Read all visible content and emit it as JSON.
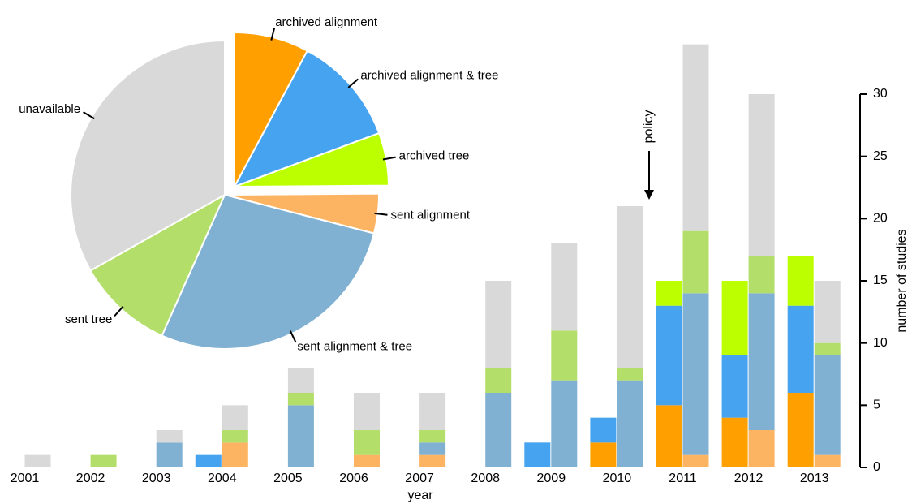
{
  "chart_data": [
    {
      "type": "pie",
      "categories": [
        "archived alignment",
        "archived alignment & tree",
        "archived tree",
        "sent alignment",
        "sent alignment & tree",
        "sent tree",
        "unavailable"
      ],
      "values": [
        17,
        25,
        12,
        9,
        60,
        22,
        72
      ],
      "colors": [
        "#ff9f00",
        "#46a3f0",
        "#bbff00",
        "#fdb462",
        "#80b1d3",
        "#b3de69",
        "#d9d9d9"
      ],
      "explode": [
        true,
        true,
        true,
        false,
        false,
        false,
        false
      ]
    },
    {
      "type": "bar",
      "stacked": true,
      "categories": [
        "2001",
        "2002",
        "2003",
        "2004",
        "2005",
        "2006",
        "2007",
        "2008",
        "2009",
        "2010",
        "2011",
        "2012",
        "2013"
      ],
      "x_label": "year",
      "y_label": "number of studies",
      "annotation": "policy",
      "ylim": [
        0,
        30
      ],
      "yticks": [
        0,
        5,
        10,
        15,
        20,
        25,
        30
      ],
      "series": [
        {
          "name": "archived alignment",
          "color": "#ff9f00",
          "side": "left",
          "values": [
            0,
            0,
            0,
            0,
            0,
            0,
            0,
            0,
            0,
            2,
            5,
            4,
            6
          ]
        },
        {
          "name": "archived alignment & tree",
          "color": "#46a3f0",
          "side": "left",
          "values": [
            0,
            0,
            0,
            1,
            0,
            0,
            0,
            0,
            2,
            2,
            8,
            5,
            7
          ]
        },
        {
          "name": "archived tree",
          "color": "#bbff00",
          "side": "left",
          "values": [
            0,
            0,
            0,
            0,
            0,
            0,
            0,
            0,
            0,
            0,
            2,
            6,
            4
          ]
        },
        {
          "name": "sent alignment",
          "color": "#fdb462",
          "side": "right",
          "values": [
            0,
            0,
            0,
            2,
            0,
            1,
            1,
            0,
            0,
            0,
            1,
            3,
            1
          ]
        },
        {
          "name": "sent alignment & tree",
          "color": "#80b1d3",
          "side": "right",
          "values": [
            0,
            0,
            2,
            0,
            5,
            0,
            1,
            6,
            7,
            7,
            13,
            11,
            8
          ]
        },
        {
          "name": "sent tree",
          "color": "#b3de69",
          "side": "right",
          "values": [
            0,
            1,
            0,
            1,
            1,
            2,
            1,
            2,
            4,
            1,
            5,
            3,
            1
          ]
        },
        {
          "name": "unavailable",
          "color": "#d9d9d9",
          "side": "right",
          "values": [
            1,
            0,
            1,
            2,
            2,
            3,
            3,
            7,
            7,
            13,
            15,
            13,
            5
          ]
        }
      ]
    }
  ]
}
